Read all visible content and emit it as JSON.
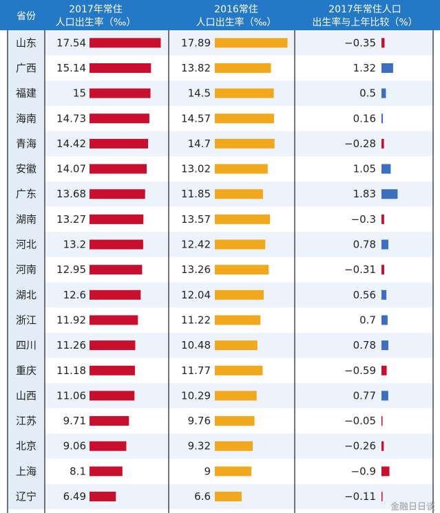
{
  "colors": {
    "header_bg": "#2479c6",
    "province_col_bg": "#e2edf8",
    "row_band": "#edf3fa",
    "row_white": "#ffffff",
    "divider": "#2a2a2a",
    "bar_2017": "#c8102e",
    "bar_2016": "#f2a81d",
    "bar_diff_pos": "#3d6fc0",
    "bar_diff_neg": "#c8102e"
  },
  "header": {
    "col1": "省份",
    "col2_line1": "2017年常住",
    "col2_line2": "人口出生率（‰）",
    "col3_line1": "2016常住",
    "col3_line2": "人口出生率（‰）",
    "col4_line1": "2017年常住人口",
    "col4_line2": "出生率与上年比较（%）"
  },
  "watermark": "金融日日谈",
  "chart_data": {
    "type": "table",
    "columns": [
      "省份",
      "2017年常住人口出生率（‰）",
      "2016常住人口出生率（‰）",
      "2017年常住人口出生率与上年比较（%）"
    ],
    "rows": [
      {
        "province": "山东",
        "r2017": "17.54",
        "r2016": "17.89",
        "diff": "−0.35"
      },
      {
        "province": "广西",
        "r2017": "15.14",
        "r2016": "13.82",
        "diff": "1.32"
      },
      {
        "province": "福建",
        "r2017": "15",
        "r2016": "14.5",
        "diff": "0.5"
      },
      {
        "province": "海南",
        "r2017": "14.73",
        "r2016": "14.57",
        "diff": "0.16"
      },
      {
        "province": "青海",
        "r2017": "14.42",
        "r2016": "14.7",
        "diff": "−0.28"
      },
      {
        "province": "安徽",
        "r2017": "14.07",
        "r2016": "13.02",
        "diff": "1.05"
      },
      {
        "province": "广东",
        "r2017": "13.68",
        "r2016": "11.85",
        "diff": "1.83"
      },
      {
        "province": "湖南",
        "r2017": "13.27",
        "r2016": "13.57",
        "diff": "−0.3"
      },
      {
        "province": "河北",
        "r2017": "13.2",
        "r2016": "12.42",
        "diff": "0.78"
      },
      {
        "province": "河南",
        "r2017": "12.95",
        "r2016": "13.26",
        "diff": "−0.31"
      },
      {
        "province": "湖北",
        "r2017": "12.6",
        "r2016": "12.04",
        "diff": "0.56"
      },
      {
        "province": "浙江",
        "r2017": "11.92",
        "r2016": "11.22",
        "diff": "0.7"
      },
      {
        "province": "四川",
        "r2017": "11.26",
        "r2016": "10.48",
        "diff": "0.78"
      },
      {
        "province": "重庆",
        "r2017": "11.18",
        "r2016": "11.77",
        "diff": "−0.59"
      },
      {
        "province": "山西",
        "r2017": "11.06",
        "r2016": "10.29",
        "diff": "0.77"
      },
      {
        "province": "江苏",
        "r2017": "9.71",
        "r2016": "9.76",
        "diff": "−0.05"
      },
      {
        "province": "北京",
        "r2017": "9.06",
        "r2016": "9.32",
        "diff": "−0.26"
      },
      {
        "province": "上海",
        "r2017": "8.1",
        "r2016": "9",
        "diff": "−0.9"
      },
      {
        "province": "辽宁",
        "r2017": "6.49",
        "r2016": "6.6",
        "diff": "−0.11"
      }
    ]
  }
}
